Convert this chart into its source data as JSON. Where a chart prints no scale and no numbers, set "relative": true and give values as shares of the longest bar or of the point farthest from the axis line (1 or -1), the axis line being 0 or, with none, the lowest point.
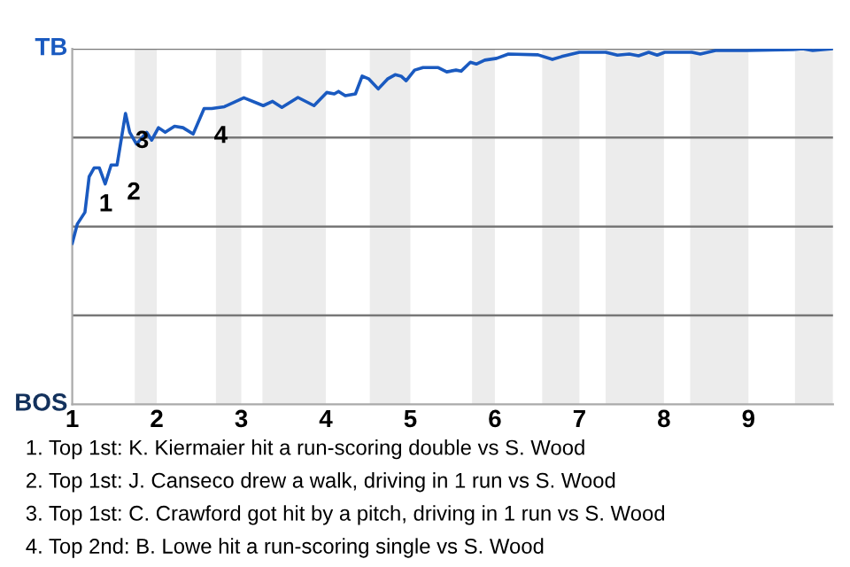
{
  "chart_data": {
    "type": "line",
    "relative": true,
    "x": [
      1.0,
      1.06,
      1.15,
      1.2,
      1.26,
      1.32,
      1.39,
      1.46,
      1.53,
      1.63,
      1.68,
      1.76,
      1.88,
      1.94,
      2.02,
      2.1,
      2.21,
      2.31,
      2.43,
      2.56,
      2.65,
      2.8,
      3.03,
      3.26,
      3.37,
      3.48,
      3.67,
      3.86,
      4.01,
      4.1,
      4.15,
      4.23,
      4.35,
      4.43,
      4.51,
      4.62,
      4.73,
      4.82,
      4.89,
      4.95,
      5.05,
      5.15,
      5.33,
      5.43,
      5.54,
      5.6,
      5.71,
      5.78,
      5.88,
      6.02,
      6.16,
      6.51,
      6.68,
      6.79,
      7.0,
      7.31,
      7.45,
      7.59,
      7.7,
      7.82,
      7.92,
      8.01,
      8.33,
      8.43,
      8.61,
      8.98,
      9.53,
      9.64,
      9.76,
      10
    ],
    "series": [
      {
        "color": "#1a5ac0",
        "values": [
          0.453,
          0.507,
          0.54,
          0.64,
          0.665,
          0.665,
          0.62,
          0.673,
          0.673,
          0.818,
          0.765,
          0.732,
          0.765,
          0.743,
          0.778,
          0.765,
          0.782,
          0.778,
          0.76,
          0.832,
          0.832,
          0.837,
          0.862,
          0.84,
          0.852,
          0.835,
          0.863,
          0.84,
          0.877,
          0.873,
          0.88,
          0.868,
          0.873,
          0.923,
          0.915,
          0.887,
          0.915,
          0.927,
          0.923,
          0.91,
          0.94,
          0.947,
          0.947,
          0.935,
          0.94,
          0.937,
          0.962,
          0.957,
          0.968,
          0.973,
          0.985,
          0.983,
          0.97,
          0.978,
          0.99,
          0.99,
          0.982,
          0.985,
          0.98,
          0.99,
          0.982,
          0.99,
          0.99,
          0.985,
          0.995,
          0.995,
          0.998,
          1,
          0.995,
          1
        ]
      }
    ],
    "xlim": [
      1,
      10
    ],
    "xticks": [
      1,
      2,
      3,
      4,
      5,
      6,
      7,
      8,
      9
    ],
    "marker": "none",
    "line_style": "solid",
    "ref_lines": [
      {
        "axis": "y",
        "value": 0.25,
        "label": null
      },
      {
        "axis": "y",
        "value": 0.5,
        "label": null
      },
      {
        "axis": "y",
        "value": 0.75,
        "label": null
      },
      {
        "axis": "y",
        "value": 1,
        "label": null
      }
    ],
    "bands": [
      {
        "axis": "x",
        "from": 1.74,
        "to": 2,
        "color": "#ececec"
      },
      {
        "axis": "x",
        "from": 2.7,
        "to": 3,
        "color": "#ececec"
      },
      {
        "axis": "x",
        "from": 3.25,
        "to": 4,
        "color": "#ececec"
      },
      {
        "axis": "x",
        "from": 4.52,
        "to": 5,
        "color": "#ececec"
      },
      {
        "axis": "x",
        "from": 5.73,
        "to": 6,
        "color": "#ececec"
      },
      {
        "axis": "x",
        "from": 6.56,
        "to": 7,
        "color": "#ececec"
      },
      {
        "axis": "x",
        "from": 7.31,
        "to": 8,
        "color": "#ececec"
      },
      {
        "axis": "x",
        "from": 8.31,
        "to": 9,
        "color": "#ececec"
      },
      {
        "axis": "x",
        "from": 9.55,
        "to": 10,
        "color": "#ececec"
      }
    ],
    "annotations": [
      "TB",
      "BOS",
      {
        "text": "1",
        "x": 1.2,
        "y": 0.64
      },
      {
        "text": "2",
        "x": 1.53,
        "y": 0.673
      },
      {
        "text": "3",
        "x": 1.63,
        "y": 0.818
      },
      {
        "text": "4",
        "x": 2.56,
        "y": 0.832
      },
      "1. Top 1st: K. Kiermaier hit a run-scoring double vs S. Wood",
      "2. Top 1st: J. Canseco drew a walk, driving in 1 run vs S. Wood",
      "3. Top 1st: C. Crawford got hit by a pitch, driving in 1 run vs S. Wood",
      "4. Top 2nd: B. Lowe hit a run-scoring single vs S. Wood"
    ]
  }
}
